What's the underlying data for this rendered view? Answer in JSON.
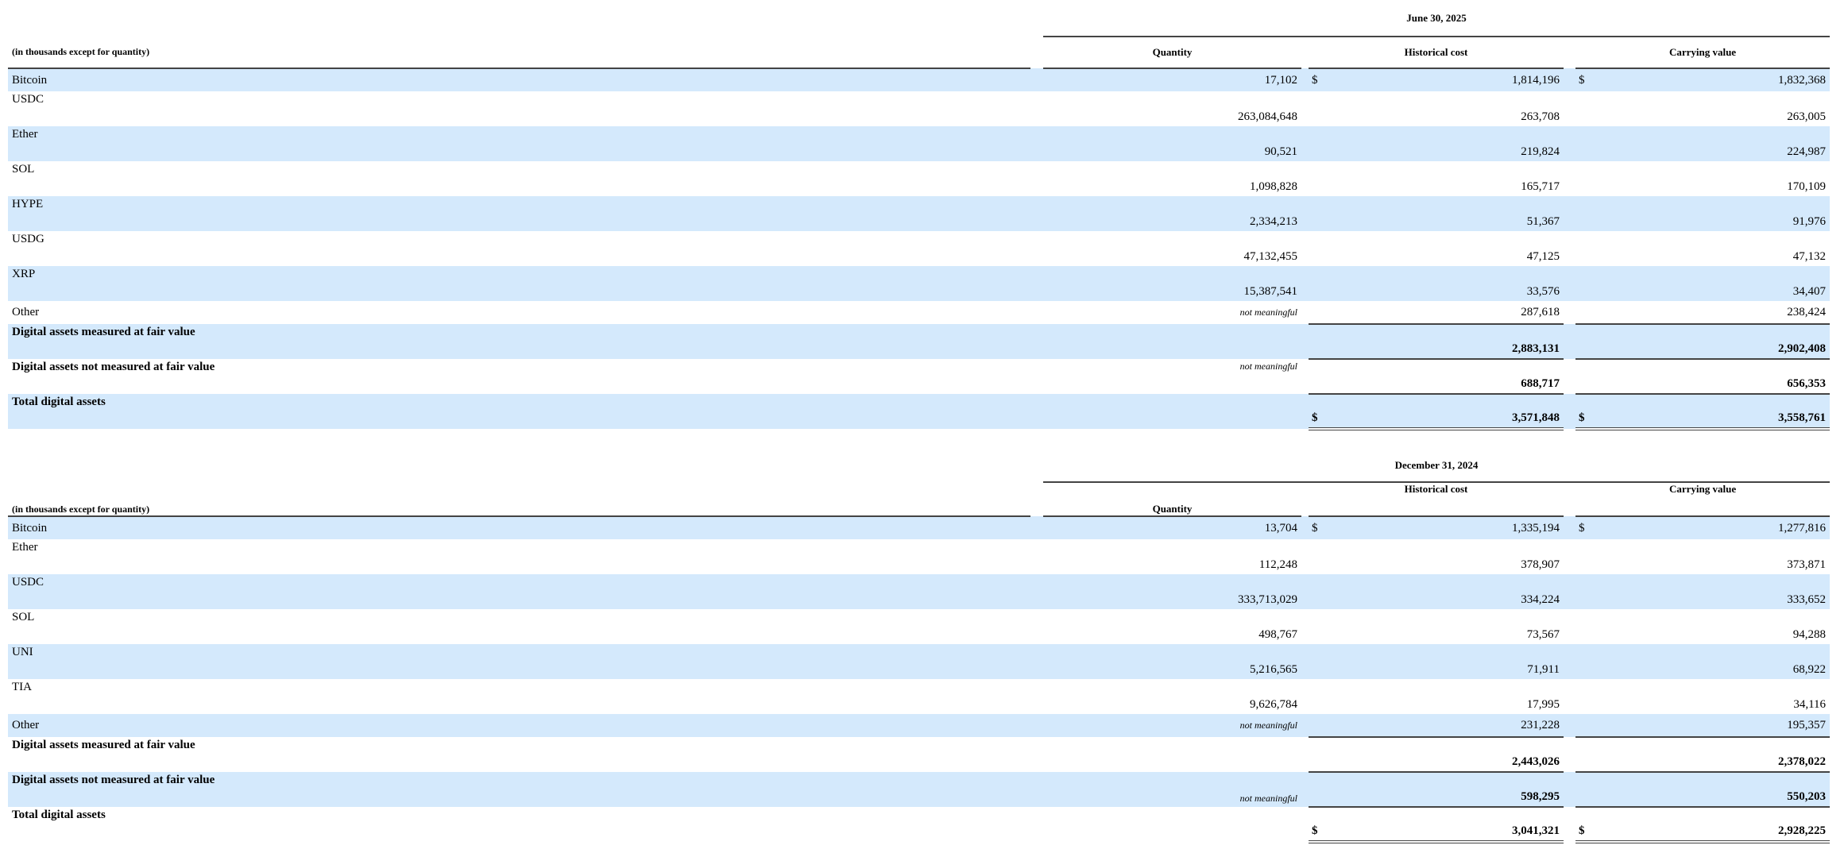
{
  "colors": {
    "row_highlight": "#d4e9fc",
    "rule": "#444444"
  },
  "tables": [
    {
      "date_header": "June 30, 2025",
      "units_label": "(in thousands except for quantity)",
      "columns": {
        "quantity": "Quantity",
        "historical_cost": "Historical cost",
        "carrying_value": "Carrying value"
      },
      "currency_symbol": "$",
      "rows": [
        {
          "asset": "Bitcoin",
          "quantity": "17,102",
          "historical_cost": "1,814,196",
          "carrying_value": "1,832,368",
          "currency": true
        },
        {
          "asset": "USDC",
          "quantity": "263,084,648",
          "historical_cost": "263,708",
          "carrying_value": "263,005"
        },
        {
          "asset": "Ether",
          "quantity": "90,521",
          "historical_cost": "219,824",
          "carrying_value": "224,987"
        },
        {
          "asset": "SOL",
          "quantity": "1,098,828",
          "historical_cost": "165,717",
          "carrying_value": "170,109"
        },
        {
          "asset": "HYPE",
          "quantity": "2,334,213",
          "historical_cost": "51,367",
          "carrying_value": "91,976"
        },
        {
          "asset": "USDG",
          "quantity": "47,132,455",
          "historical_cost": "47,125",
          "carrying_value": "47,132"
        },
        {
          "asset": "XRP",
          "quantity": "15,387,541",
          "historical_cost": "33,576",
          "carrying_value": "34,407"
        },
        {
          "asset": "Other",
          "quantity": "not meaningful",
          "historical_cost": "287,618",
          "carrying_value": "238,424"
        }
      ],
      "totals": [
        {
          "label": "Digital assets measured at fair value",
          "quantity": "",
          "historical_cost": "2,883,131",
          "carrying_value": "2,902,408"
        },
        {
          "label": "Digital assets not measured at fair value",
          "quantity": "not meaningful",
          "historical_cost": "688,717",
          "carrying_value": "656,353"
        },
        {
          "label": "Total digital assets",
          "quantity": "",
          "historical_cost": "3,571,848",
          "carrying_value": "3,558,761",
          "currency": true
        }
      ]
    },
    {
      "date_header": "December 31, 2024",
      "units_label": "(in thousands except for quantity)",
      "columns": {
        "quantity": "Quantity",
        "historical_cost": "Historical cost",
        "carrying_value": "Carrying value"
      },
      "currency_symbol": "$",
      "rows": [
        {
          "asset": "Bitcoin",
          "quantity": "13,704",
          "historical_cost": "1,335,194",
          "carrying_value": "1,277,816",
          "currency": true
        },
        {
          "asset": "Ether",
          "quantity": "112,248",
          "historical_cost": "378,907",
          "carrying_value": "373,871"
        },
        {
          "asset": "USDC",
          "quantity": "333,713,029",
          "historical_cost": "334,224",
          "carrying_value": "333,652"
        },
        {
          "asset": "SOL",
          "quantity": "498,767",
          "historical_cost": "73,567",
          "carrying_value": "94,288"
        },
        {
          "asset": "UNI",
          "quantity": "5,216,565",
          "historical_cost": "71,911",
          "carrying_value": "68,922"
        },
        {
          "asset": "TIA",
          "quantity": "9,626,784",
          "historical_cost": "17,995",
          "carrying_value": "34,116"
        },
        {
          "asset": "Other",
          "quantity": "not meaningful",
          "historical_cost": "231,228",
          "carrying_value": "195,357"
        }
      ],
      "totals": [
        {
          "label": "Digital assets measured at fair value",
          "quantity": "",
          "historical_cost": "2,443,026",
          "carrying_value": "2,378,022"
        },
        {
          "label": "Digital assets not measured at fair value",
          "quantity": "not meaningful",
          "historical_cost": "598,295",
          "carrying_value": "550,203"
        },
        {
          "label": "Total digital assets",
          "quantity": "",
          "historical_cost": "3,041,321",
          "carrying_value": "2,928,225",
          "currency": true
        }
      ]
    }
  ]
}
